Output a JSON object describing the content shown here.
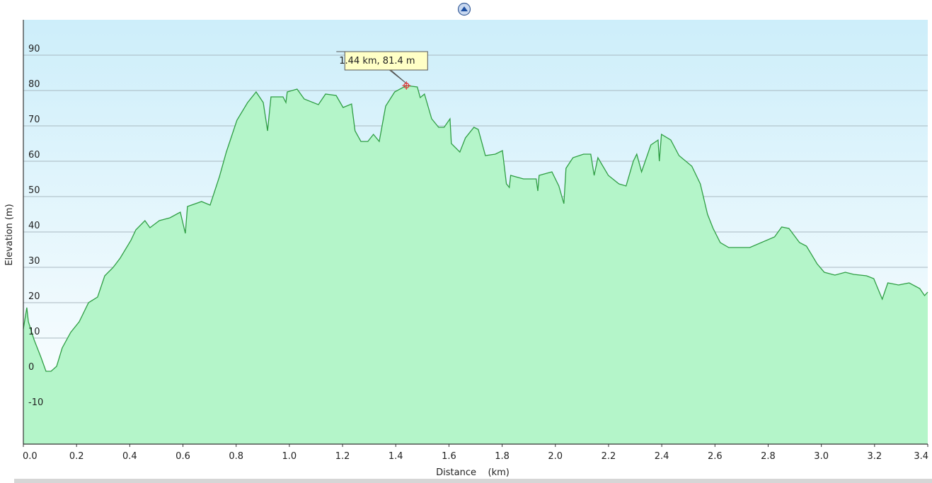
{
  "chart_data": {
    "type": "area",
    "xlabel": "Distance    (km)",
    "ylabel": "Elevation (m)",
    "xlim": [
      0,
      3.4
    ],
    "ylim": [
      -20,
      100
    ],
    "xticks": [
      {
        "value": 0,
        "label": "0.0"
      },
      0.2,
      0.4,
      0.6,
      0.8,
      {
        "value": 1,
        "label": "1.0"
      },
      1.2,
      1.4,
      1.6,
      1.8,
      {
        "value": 2,
        "label": "2.0"
      },
      2.2,
      2.4,
      2.6,
      2.8,
      {
        "value": 3,
        "label": "3.0"
      },
      3.2,
      3.4
    ],
    "yticks": [
      -10,
      0,
      10,
      20,
      30,
      40,
      50,
      60,
      70,
      80,
      90
    ],
    "grid": true,
    "color": "#2f9e44",
    "fill": "#b4f5c9",
    "x": [
      0,
      0.013,
      0.019,
      0.04,
      0.066,
      0.085,
      0.104,
      0.125,
      0.146,
      0.178,
      0.21,
      0.245,
      0.279,
      0.306,
      0.338,
      0.364,
      0.404,
      0.423,
      0.457,
      0.476,
      0.511,
      0.551,
      0.59,
      0.609,
      0.617,
      0.67,
      0.702,
      0.737,
      0.763,
      0.803,
      0.843,
      0.875,
      0.902,
      0.918,
      0.931,
      0.976,
      0.987,
      0.992,
      1.029,
      1.056,
      1.109,
      1.136,
      1.176,
      1.202,
      1.234,
      1.247,
      1.269,
      1.295,
      1.316,
      1.338,
      1.362,
      1.396,
      1.44,
      1.481,
      1.492,
      1.508,
      1.535,
      1.561,
      1.582,
      1.604,
      1.609,
      1.641,
      1.662,
      1.694,
      1.71,
      1.737,
      1.774,
      1.801,
      1.816,
      1.827,
      1.832,
      1.88,
      1.928,
      1.934,
      1.939,
      1.987,
      2.013,
      2.032,
      2.04,
      2.066,
      2.106,
      2.133,
      2.146,
      2.16,
      2.199,
      2.239,
      2.266,
      2.293,
      2.306,
      2.324,
      2.359,
      2.386,
      2.391,
      2.399,
      2.434,
      2.465,
      2.513,
      2.545,
      2.572,
      2.593,
      2.62,
      2.652,
      2.731,
      2.824,
      2.851,
      2.878,
      2.918,
      2.944,
      2.984,
      3.011,
      3.051,
      3.09,
      3.122,
      3.17,
      3.197,
      3.229,
      3.25,
      3.29,
      3.33,
      3.37,
      3.388,
      3.4
    ],
    "values": [
      12.6,
      18.6,
      14.6,
      9.6,
      4.6,
      0.6,
      0.6,
      2,
      7.2,
      11.6,
      14.6,
      20,
      21.6,
      27.6,
      30,
      32.6,
      37.6,
      40.6,
      43.2,
      41.2,
      43.2,
      44,
      45.6,
      39.6,
      47.2,
      48.6,
      47.6,
      55.6,
      62.6,
      71.6,
      76.6,
      79.6,
      76.6,
      68.6,
      78.2,
      78.2,
      76.6,
      79.6,
      80.4,
      77.6,
      76,
      79,
      78.6,
      75.2,
      76.2,
      68.6,
      65.6,
      65.6,
      67.6,
      65.6,
      75.6,
      79.6,
      81.4,
      81,
      78,
      79,
      72,
      69.6,
      69.6,
      72,
      65,
      62.6,
      66.6,
      69.6,
      69,
      61.6,
      62,
      63,
      53.6,
      52.6,
      56,
      55,
      55,
      51.6,
      56,
      57,
      53,
      48,
      58,
      61,
      62,
      62,
      56,
      61,
      56,
      53.6,
      53,
      60,
      62,
      57,
      64.6,
      66,
      60,
      67.6,
      66,
      61.6,
      58.6,
      53.6,
      45,
      41,
      37,
      35.6,
      35.6,
      38.6,
      41.4,
      41,
      37,
      36,
      31,
      28.6,
      27.8,
      28.6,
      28,
      27.6,
      26.8,
      21,
      25.6,
      25,
      25.6,
      24,
      22,
      23
    ],
    "annotation": {
      "text": "1.44 km, 81.4 m",
      "x": 1.44,
      "y": 81.4
    }
  }
}
